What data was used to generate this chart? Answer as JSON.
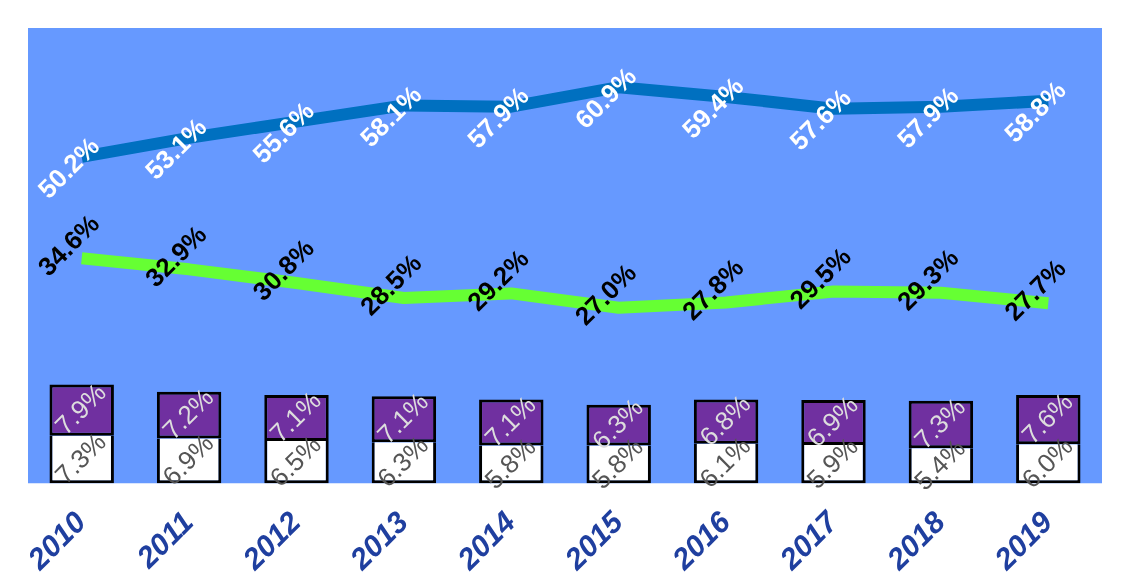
{
  "chart_data": {
    "type": "bar",
    "categories": [
      "2010",
      "2011",
      "2012",
      "2013",
      "2014",
      "2015",
      "2016",
      "2017",
      "2018",
      "2019"
    ],
    "stacked": true,
    "legend": false,
    "tick_labels": "x",
    "series": [
      {
        "color": "#ffffff",
        "values": [
          7.3,
          6.9,
          6.5,
          6.3,
          5.8,
          5.8,
          6.1,
          5.9,
          5.4,
          6.0
        ],
        "value_labels": [
          "7.3%",
          "6.9%",
          "6.5%",
          "6.3%",
          "5.8%",
          "5.8%",
          "6.1%",
          "5.9%",
          "5.4%",
          "6.0%"
        ]
      },
      {
        "color": "#7030a0",
        "values": [
          7.9,
          7.2,
          7.1,
          7.1,
          7.1,
          6.3,
          6.8,
          6.9,
          7.3,
          7.6
        ],
        "value_labels": [
          "7.9%",
          "7.2%",
          "7.1%",
          "7.1%",
          "7.1%",
          "6.3%",
          "6.8%",
          "6.9%",
          "7.3%",
          "7.6%"
        ]
      },
      {
        "type": "line",
        "color": "#0070c0",
        "values": [
          50.2,
          53.1,
          55.6,
          58.1,
          57.9,
          60.9,
          59.4,
          57.6,
          57.9,
          58.8
        ],
        "value_labels": [
          "50.2%",
          "53.1%",
          "55.6%",
          "58.1%",
          "57.9%",
          "60.9%",
          "59.4%",
          "57.6%",
          "57.9%",
          "58.8%"
        ]
      },
      {
        "type": "line",
        "color": "#66ff33",
        "values": [
          34.6,
          32.9,
          30.8,
          28.5,
          29.2,
          27.0,
          27.8,
          29.5,
          29.3,
          27.7
        ],
        "value_labels": [
          "34.6%",
          "32.9%",
          "30.8%",
          "28.5%",
          "29.2%",
          "27.0%",
          "27.8%",
          "29.5%",
          "29.3%",
          "27.7%"
        ]
      }
    ]
  }
}
